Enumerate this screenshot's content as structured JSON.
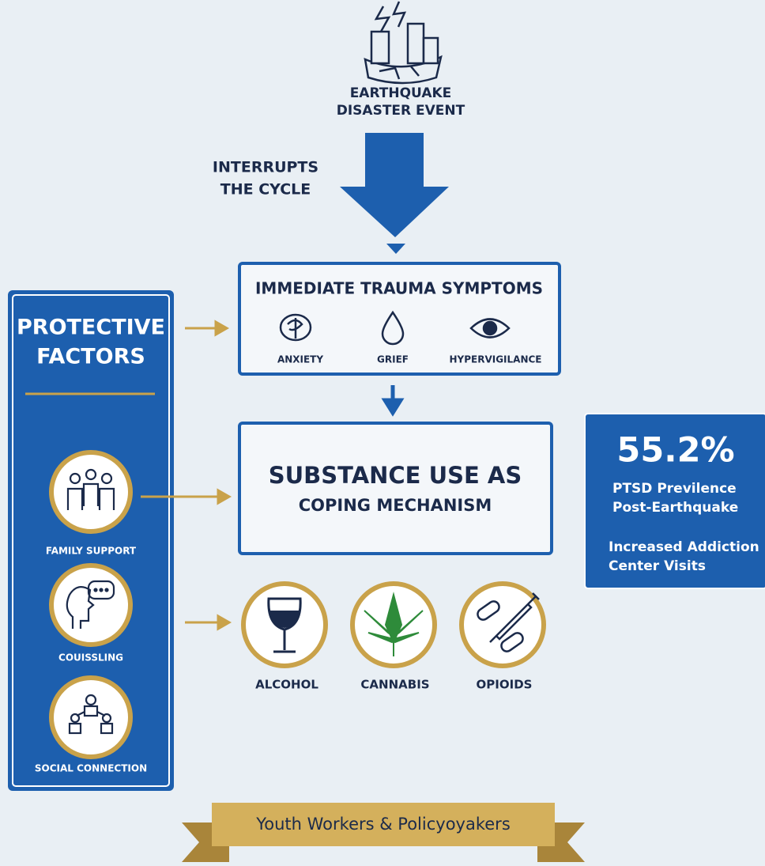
{
  "event": {
    "lines": [
      "EARTHQUAKE",
      "DISASTER EVENT"
    ]
  },
  "interrupts": {
    "lines": [
      "INTERRUPTS",
      "THE CYCLE"
    ]
  },
  "trauma": {
    "title": "IMMEDIATE TRAUMA SYMPTOMS",
    "symptoms": [
      "ANXIETY",
      "GRIEF",
      "HYPERVIGILANCE"
    ]
  },
  "coping": {
    "lines": [
      "SUBSTANCE USE AS",
      "COPING MECHANISM"
    ]
  },
  "substances": [
    "ALCOHOL",
    "CANNABIS",
    "OPIOIDS"
  ],
  "protective": {
    "title": [
      "PROTECTIVE",
      "FACTORS"
    ],
    "items": [
      "FAMILY SUPPORT",
      "COUISSLING",
      "SOCIAL CONNECTION"
    ]
  },
  "stat": {
    "value": "55.2%",
    "lines": [
      "PTSD Previlence",
      "Post-Earthquake",
      "Increased Addiction",
      "Center Visits"
    ]
  },
  "banner": {
    "text": "Youth Workers & Policyoyakers"
  }
}
